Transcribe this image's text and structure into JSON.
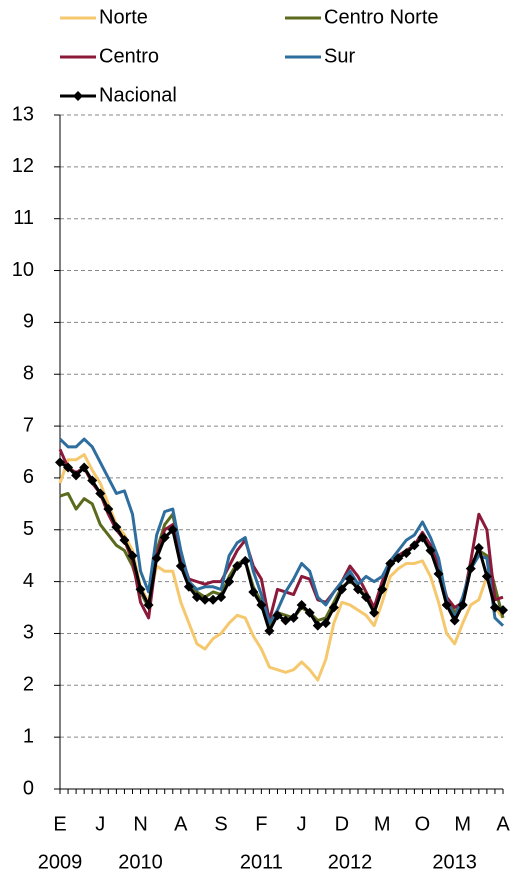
{
  "chart_data": {
    "type": "line",
    "categories": [
      "E",
      null,
      null,
      null,
      null,
      "J",
      null,
      null,
      null,
      null,
      "N",
      null,
      null,
      null,
      null,
      "A",
      null,
      null,
      null,
      null,
      "S",
      null,
      null,
      null,
      null,
      "F",
      null,
      null,
      null,
      null,
      "J",
      null,
      null,
      null,
      null,
      "D",
      null,
      null,
      null,
      null,
      "M",
      null,
      null,
      null,
      null,
      "O",
      null,
      null,
      null,
      null,
      "M",
      null,
      null,
      null,
      null,
      "A"
    ],
    "year_labels": [
      {
        "label": "2009",
        "at": 0
      },
      {
        "label": "2010",
        "at": 10
      },
      {
        "label": "2011",
        "at": 25
      },
      {
        "label": "2012",
        "at": 36
      },
      {
        "label": "2013",
        "at": 49
      }
    ],
    "series": [
      {
        "name": "Norte",
        "color": "#f5c86e",
        "values": [
          5.9,
          6.35,
          6.35,
          6.45,
          6.15,
          5.9,
          5.5,
          5.1,
          4.9,
          4.6,
          3.9,
          3.6,
          4.3,
          4.2,
          4.2,
          3.6,
          3.2,
          2.8,
          2.7,
          2.9,
          3.0,
          3.2,
          3.35,
          3.3,
          2.95,
          2.7,
          2.35,
          2.3,
          2.25,
          2.3,
          2.45,
          2.3,
          2.1,
          2.5,
          3.2,
          3.6,
          3.55,
          3.45,
          3.35,
          3.15,
          3.6,
          4.1,
          4.25,
          4.35,
          4.35,
          4.4,
          4.1,
          3.6,
          3.0,
          2.8,
          3.2,
          3.55,
          3.65,
          4.1,
          3.5,
          3.3
        ]
      },
      {
        "name": "Centro Norte",
        "color": "#5b6b1e",
        "values": [
          5.65,
          5.7,
          5.4,
          5.6,
          5.5,
          5.1,
          4.9,
          4.7,
          4.6,
          4.3,
          3.8,
          3.5,
          4.6,
          5.1,
          5.3,
          4.5,
          3.9,
          3.8,
          3.7,
          3.8,
          3.75,
          4.1,
          4.35,
          4.4,
          3.9,
          3.6,
          3.15,
          3.4,
          3.35,
          3.3,
          3.5,
          3.4,
          3.25,
          3.3,
          3.6,
          3.9,
          4.0,
          3.9,
          3.7,
          3.5,
          3.9,
          4.3,
          4.5,
          4.6,
          4.7,
          4.9,
          4.6,
          4.2,
          3.7,
          3.4,
          3.6,
          4.3,
          4.6,
          4.5,
          3.9,
          3.3
        ]
      },
      {
        "name": "Centro",
        "color": "#8b1a3a",
        "values": [
          6.55,
          6.2,
          6.1,
          6.2,
          5.9,
          5.7,
          5.3,
          5.0,
          4.8,
          4.4,
          3.6,
          3.3,
          4.5,
          5.0,
          5.1,
          4.5,
          4.05,
          4.0,
          3.95,
          4.0,
          4.0,
          4.3,
          4.6,
          4.8,
          4.3,
          4.05,
          3.25,
          3.85,
          3.8,
          3.75,
          4.1,
          4.05,
          3.65,
          3.6,
          3.8,
          4.0,
          4.3,
          4.1,
          3.8,
          3.5,
          4.0,
          4.4,
          4.5,
          4.6,
          4.7,
          4.95,
          4.7,
          4.3,
          3.7,
          3.5,
          3.6,
          4.4,
          5.3,
          5.0,
          3.65,
          3.7
        ]
      },
      {
        "name": "Sur",
        "color": "#2e6e9e",
        "values": [
          6.75,
          6.6,
          6.6,
          6.75,
          6.6,
          6.3,
          6.0,
          5.7,
          5.75,
          5.3,
          4.2,
          3.8,
          4.9,
          5.35,
          5.4,
          4.6,
          4.0,
          3.85,
          3.9,
          3.9,
          3.85,
          4.5,
          4.75,
          4.85,
          4.2,
          3.75,
          3.2,
          3.45,
          3.8,
          4.05,
          4.35,
          4.2,
          3.7,
          3.55,
          3.8,
          4.0,
          4.2,
          3.95,
          4.1,
          4.0,
          4.1,
          4.4,
          4.6,
          4.8,
          4.9,
          5.15,
          4.85,
          4.45,
          3.65,
          3.3,
          3.7,
          4.25,
          4.5,
          4.45,
          3.3,
          3.15
        ]
      },
      {
        "name": "Nacional",
        "color": "#000000",
        "marker": "diamond",
        "values": [
          6.3,
          6.2,
          6.05,
          6.2,
          5.95,
          5.7,
          5.4,
          5.05,
          4.8,
          4.5,
          3.85,
          3.55,
          4.45,
          4.85,
          5.0,
          4.3,
          3.9,
          3.7,
          3.65,
          3.65,
          3.7,
          4.0,
          4.3,
          4.4,
          3.8,
          3.55,
          3.05,
          3.35,
          3.25,
          3.3,
          3.55,
          3.4,
          3.15,
          3.2,
          3.5,
          3.85,
          4.05,
          3.85,
          3.7,
          3.4,
          3.85,
          4.35,
          4.45,
          4.55,
          4.7,
          4.85,
          4.6,
          4.15,
          3.55,
          3.25,
          3.55,
          4.25,
          4.65,
          4.1,
          3.5,
          3.45
        ]
      }
    ],
    "ylim": [
      0,
      13
    ],
    "yticks": [
      0,
      1,
      2,
      3,
      4,
      5,
      6,
      7,
      8,
      9,
      10,
      11,
      12,
      13
    ],
    "grid": true
  }
}
